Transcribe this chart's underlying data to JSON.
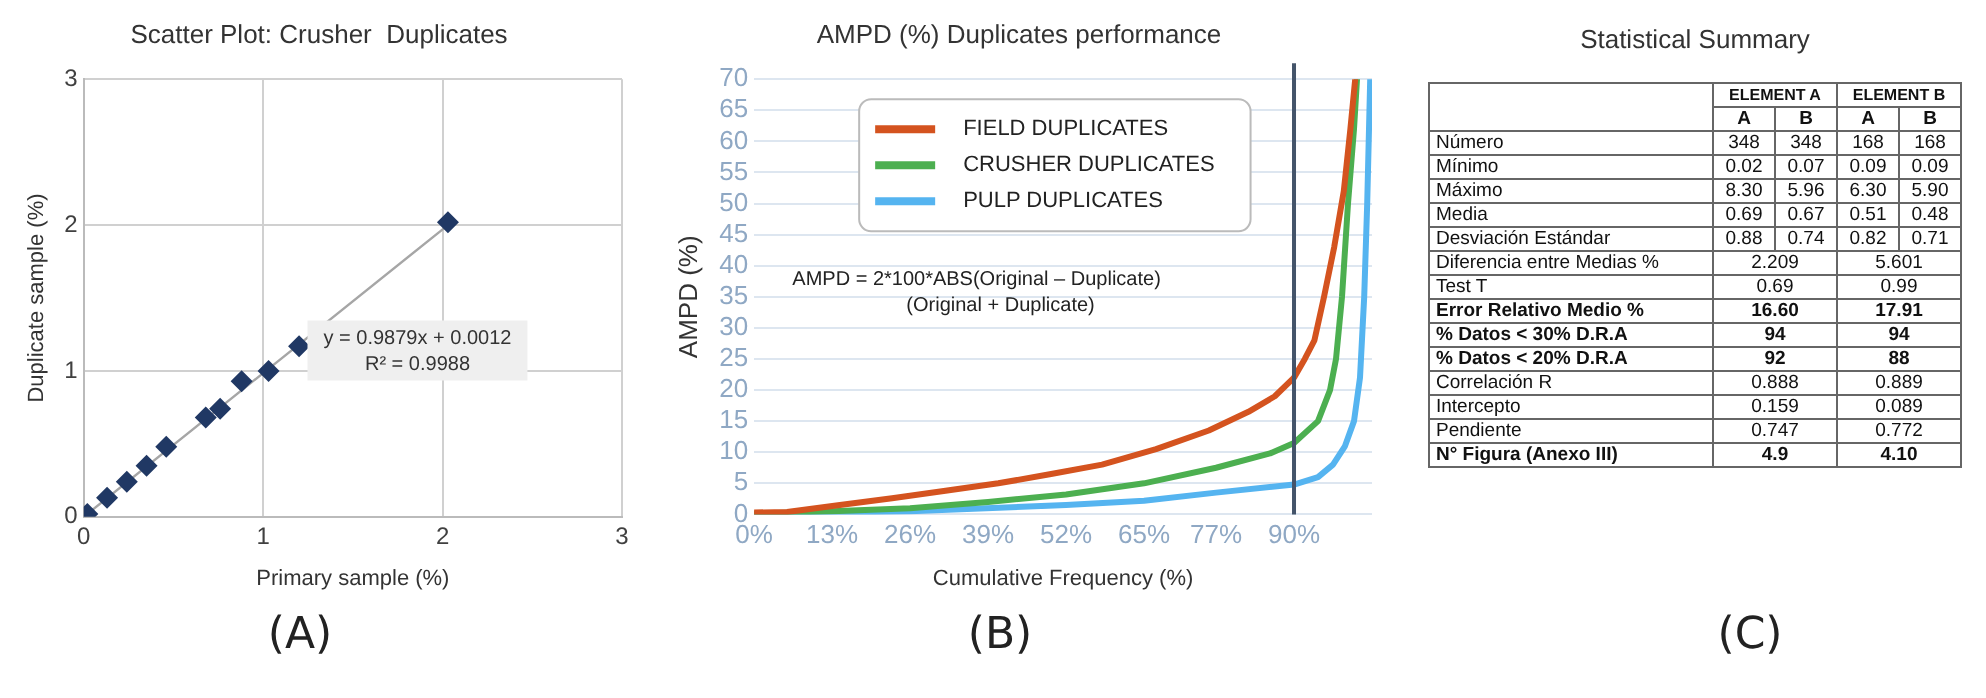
{
  "chart_data": [
    {
      "type": "scatter",
      "title": "Scatter Plot: Crusher  Duplicates",
      "xlabel": "Primary sample (%)",
      "ylabel": "Duplicate sample (%)",
      "xlim": [
        0,
        3
      ],
      "ylim": [
        0,
        3
      ],
      "xticks": [
        0,
        1,
        2,
        3
      ],
      "yticks": [
        0,
        1,
        2,
        3
      ],
      "grid": true,
      "marker": "diamond",
      "series": [
        {
          "type": "scatter",
          "color": "#203864",
          "x": [
            0.02,
            0.13,
            0.24,
            0.35,
            0.46,
            0.68,
            0.76,
            0.88,
            1.03,
            1.2,
            2.03
          ],
          "values": [
            0.02,
            0.13,
            0.24,
            0.35,
            0.48,
            0.68,
            0.74,
            0.93,
            1.0,
            1.17,
            2.02
          ]
        },
        {
          "type": "line",
          "color": "#a6a6a6",
          "marker": "none",
          "x": [
            0,
            2.03
          ],
          "values": [
            0,
            2.0
          ]
        }
      ],
      "annotations": [
        "y = 0.9879x + 0.0012",
        "R² = 0.9988",
        "(A)"
      ]
    },
    {
      "type": "line",
      "title": "AMPD (%) Duplicates performance",
      "xlabel": "Cumulative Frequency (%)",
      "ylabel": "AMPD (%)",
      "xlim": [
        0,
        103
      ],
      "ylim": [
        0,
        70
      ],
      "xticks": [
        {
          "value": 0,
          "label": "0%"
        },
        {
          "value": 13,
          "label": "13%"
        },
        {
          "value": 26,
          "label": "26%"
        },
        {
          "value": 39,
          "label": "39%"
        },
        {
          "value": 52,
          "label": "52%"
        },
        {
          "value": 65,
          "label": "65%"
        },
        {
          "value": 77,
          "label": "77%"
        },
        {
          "value": 90,
          "label": "90%"
        }
      ],
      "yticks": [
        0,
        5,
        10,
        15,
        20,
        25,
        30,
        35,
        40,
        45,
        50,
        55,
        60,
        65,
        70
      ],
      "grid": "y",
      "legend": "top left",
      "series": [
        {
          "name": "FIELD DUPLICATES",
          "color": "#d4531f",
          "x": [
            0,
            5.5,
            14.3,
            23,
            31.9,
            40.7,
            49.5,
            58,
            67,
            75.8,
            82.4,
            86.8,
            90,
            91.8,
            93.4,
            95,
            96.7,
            98.3,
            99.4,
            100.2
          ],
          "values": [
            0.3,
            0.4,
            1.5,
            2.6,
            3.8,
            5,
            6.5,
            8,
            10.5,
            13.5,
            16.5,
            19,
            22,
            25,
            28,
            35,
            43,
            52,
            62,
            70
          ]
        },
        {
          "name": "CRUSHER DUPLICATES",
          "color": "#4caf50",
          "x": [
            0,
            13,
            26,
            39,
            52,
            65,
            77,
            86,
            90,
            94,
            96,
            97,
            98,
            99,
            100,
            100.5
          ],
          "values": [
            0.1,
            0.5,
            1,
            2,
            3.2,
            5,
            7.5,
            9.8,
            11.5,
            15,
            20,
            25,
            35,
            50,
            62,
            70
          ]
        },
        {
          "name": "PULP DUPLICATES",
          "color": "#55b4f0",
          "x": [
            0,
            26,
            52,
            65,
            77,
            90,
            94,
            96.5,
            98.5,
            100,
            101,
            101.7,
            102.2,
            102.7
          ],
          "values": [
            0,
            0.5,
            1.5,
            2.2,
            3.5,
            4.8,
            6,
            8,
            11,
            15,
            22,
            35,
            50,
            70
          ]
        }
      ],
      "ref_lines": [
        {
          "axis": "x",
          "value": 90,
          "color": "#44546a"
        }
      ],
      "annotations": [
        "AMPD = 2*100*ABS(Original – Duplicate)",
        "(Original + Duplicate)",
        "(B)"
      ]
    },
    {
      "type": "other",
      "title": "Statistical Summary",
      "categories": [
        "A",
        "B",
        "A",
        "B"
      ],
      "y_categories": [
        "Número",
        "Mínimo",
        "Máximo",
        "Media",
        "Desviación Estándar",
        "Diferencia entre Medias %",
        "Test T",
        "Error Relativo Medio %",
        "% Datos < 30% D.R.A",
        "% Datos < 20% D.R.A",
        "Correlación R",
        "Intercepto",
        "Pendiente",
        "N° Figura (Anexo III)"
      ],
      "cell_labels": [
        [
          "348",
          "348",
          "168",
          "168"
        ],
        [
          "0.02",
          "0.07",
          "0.09",
          "0.09"
        ],
        [
          "8.30",
          "5.96",
          "6.30",
          "5.90"
        ],
        [
          "0.69",
          "0.67",
          "0.51",
          "0.48"
        ],
        [
          "0.88",
          "0.74",
          "0.82",
          "0.71"
        ],
        [
          "2.209",
          "5.601"
        ],
        [
          "0.69",
          "0.99"
        ],
        [
          "16.60",
          "17.91"
        ],
        [
          "94",
          "94"
        ],
        [
          "92",
          "88"
        ],
        [
          "0.888",
          "0.889"
        ],
        [
          "0.159",
          "0.089"
        ],
        [
          "0.747",
          "0.772"
        ],
        [
          "4.9",
          "4.10"
        ]
      ],
      "annotations": [
        "ELEMENT A",
        "ELEMENT B",
        "(C)"
      ]
    }
  ]
}
